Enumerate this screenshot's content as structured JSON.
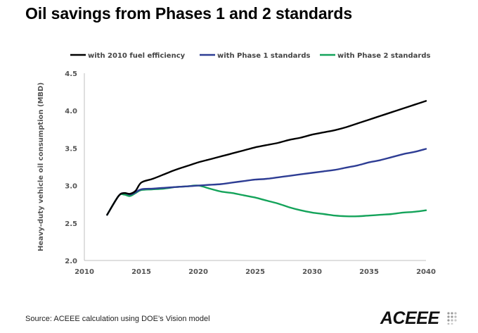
{
  "page": {
    "title": "Oil savings from Phases 1 and 2 standards",
    "source": "Source: ACEEE calculation using DOE’s Vision model",
    "logo_text": "ACEEE"
  },
  "chart_data": {
    "type": "line",
    "title": "",
    "xlabel": "",
    "ylabel": "Heavy-duty vehicle oil consumption (MBD)",
    "xlim": [
      2010,
      2040
    ],
    "ylim": [
      2.0,
      4.5
    ],
    "xticks": [
      "2010",
      "2015",
      "2020",
      "2025",
      "2030",
      "2035",
      "2040"
    ],
    "yticks": [
      "2.0",
      "2.5",
      "3.0",
      "3.5",
      "4.0",
      "4.5"
    ],
    "grid": false,
    "legend_position": "top",
    "series": [
      {
        "name": "with 2010 fuel efficiency",
        "color": "#000000",
        "x": [
          2012,
          2013,
          2013.5,
          2014,
          2014.5,
          2015,
          2016,
          2017,
          2018,
          2019,
          2020,
          2021,
          2022,
          2023,
          2024,
          2025,
          2026,
          2027,
          2028,
          2029,
          2030,
          2031,
          2032,
          2033,
          2034,
          2035,
          2036,
          2037,
          2038,
          2039,
          2040
        ],
        "values": [
          2.61,
          2.86,
          2.9,
          2.89,
          2.93,
          3.04,
          3.09,
          3.15,
          3.21,
          3.26,
          3.31,
          3.35,
          3.39,
          3.43,
          3.47,
          3.51,
          3.54,
          3.57,
          3.61,
          3.64,
          3.68,
          3.71,
          3.74,
          3.78,
          3.83,
          3.88,
          3.93,
          3.98,
          4.03,
          4.08,
          4.13
        ]
      },
      {
        "name": "with Phase 1 standards",
        "color": "#2e3d94",
        "x": [
          2012,
          2013,
          2013.5,
          2014,
          2014.5,
          2015,
          2016,
          2017,
          2018,
          2019,
          2020,
          2021,
          2022,
          2023,
          2024,
          2025,
          2026,
          2027,
          2028,
          2029,
          2030,
          2031,
          2032,
          2033,
          2034,
          2035,
          2036,
          2037,
          2038,
          2039,
          2040
        ],
        "values": [
          2.61,
          2.86,
          2.9,
          2.88,
          2.91,
          2.95,
          2.96,
          2.97,
          2.98,
          2.99,
          3.0,
          3.01,
          3.02,
          3.04,
          3.06,
          3.08,
          3.09,
          3.11,
          3.13,
          3.15,
          3.17,
          3.19,
          3.21,
          3.24,
          3.27,
          3.31,
          3.34,
          3.38,
          3.42,
          3.45,
          3.49
        ]
      },
      {
        "name": "with Phase 2 standards",
        "color": "#14a35a",
        "x": [
          2012,
          2013,
          2013.5,
          2014,
          2014.5,
          2015,
          2016,
          2017,
          2018,
          2019,
          2020,
          2021,
          2022,
          2023,
          2024,
          2025,
          2026,
          2027,
          2028,
          2029,
          2030,
          2031,
          2032,
          2033,
          2034,
          2035,
          2036,
          2037,
          2038,
          2039,
          2040
        ],
        "values": [
          2.61,
          2.86,
          2.88,
          2.86,
          2.9,
          2.94,
          2.95,
          2.96,
          2.98,
          2.99,
          3.0,
          2.96,
          2.92,
          2.9,
          2.87,
          2.84,
          2.8,
          2.76,
          2.71,
          2.67,
          2.64,
          2.62,
          2.6,
          2.59,
          2.59,
          2.6,
          2.61,
          2.62,
          2.64,
          2.65,
          2.67
        ]
      }
    ]
  }
}
